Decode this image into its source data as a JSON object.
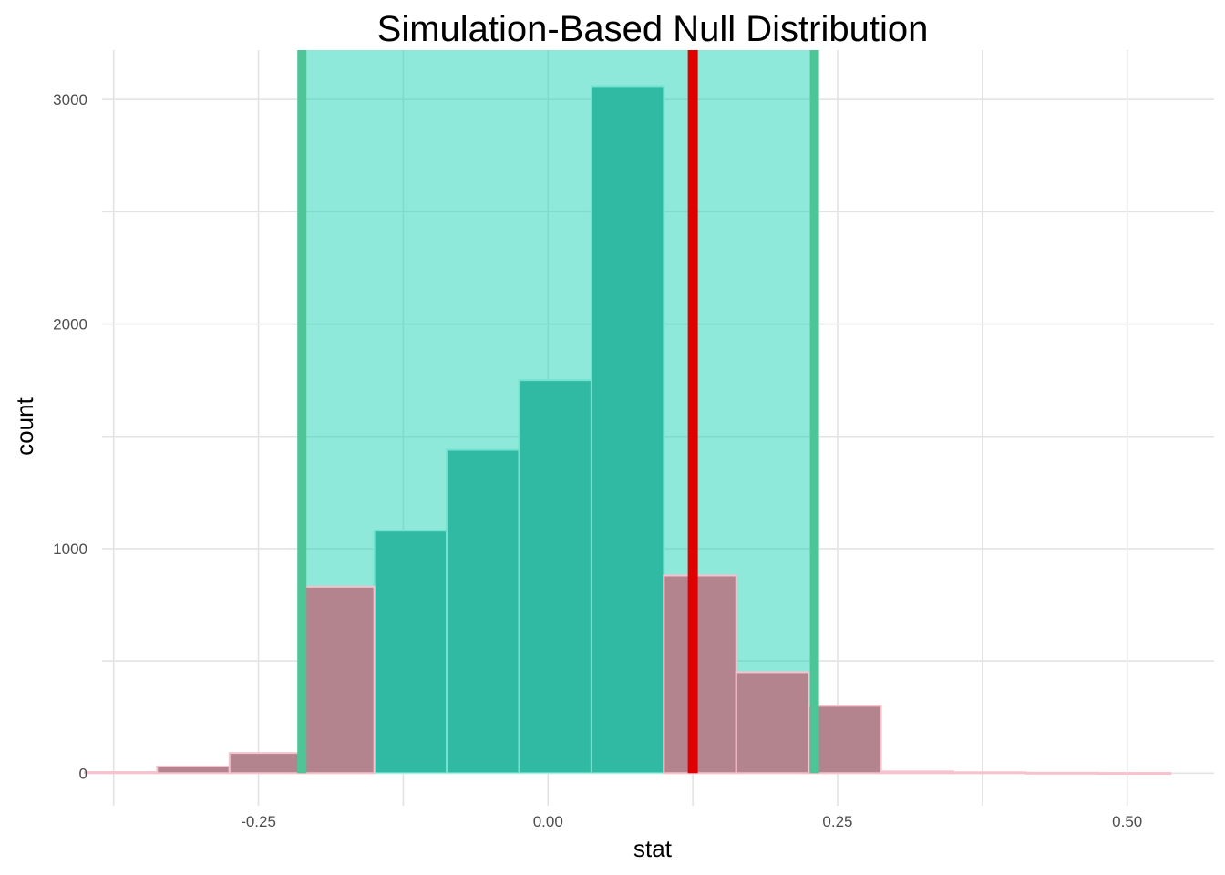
{
  "chart_data": {
    "type": "bar",
    "title": "Simulation-Based Null Distribution",
    "xlabel": "stat",
    "ylabel": "count",
    "xlim": [
      -0.385,
      0.575
    ],
    "ylim": [
      -145,
      3220
    ],
    "x_ticks": [
      -0.25,
      0.0,
      0.25,
      0.5
    ],
    "x_tick_labels": [
      "-0.25",
      "0.00",
      "0.25",
      "0.50"
    ],
    "y_ticks": [
      0,
      1000,
      2000,
      3000
    ],
    "y_tick_labels": [
      "0",
      "1000",
      "2000",
      "3000"
    ],
    "x_minor_grid": [
      -0.375,
      -0.125,
      0.125,
      0.375
    ],
    "y_minor_grid": [
      500,
      1500,
      2500
    ],
    "grid": true,
    "null_distribution": {
      "color": "#40a090",
      "bins": [
        {
          "x0": -0.2125,
          "x1": -0.15,
          "count": 830
        },
        {
          "x0": -0.15,
          "x1": -0.0875,
          "count": 1080
        },
        {
          "x0": -0.0875,
          "x1": -0.025,
          "count": 1440
        },
        {
          "x0": -0.025,
          "x1": 0.0375,
          "count": 1750
        },
        {
          "x0": 0.0375,
          "x1": 0.1,
          "count": 3060
        },
        {
          "x0": 0.1,
          "x1": 0.1625,
          "count": 880
        }
      ]
    },
    "comparison_distribution": {
      "color": "#b4848e",
      "bins": [
        {
          "x0": -0.4,
          "x1": -0.3375,
          "count": 5
        },
        {
          "x0": -0.3375,
          "x1": -0.275,
          "count": 30
        },
        {
          "x0": -0.275,
          "x1": -0.2125,
          "count": 90
        },
        {
          "x0": -0.2125,
          "x1": -0.15,
          "count": 830
        },
        {
          "x0": 0.1,
          "x1": 0.1625,
          "count": 880
        },
        {
          "x0": 0.1625,
          "x1": 0.225,
          "count": 450
        },
        {
          "x0": 0.225,
          "x1": 0.2875,
          "count": 300
        },
        {
          "x0": 0.2875,
          "x1": 0.35,
          "count": 8
        },
        {
          "x0": 0.35,
          "x1": 0.4125,
          "count": 4
        },
        {
          "x0": 0.4125,
          "x1": 0.475,
          "count": 2
        },
        {
          "x0": 0.475,
          "x1": 0.5375,
          "count": 1
        }
      ]
    },
    "confidence_interval": {
      "lower": -0.2125,
      "upper": 0.23,
      "fill": "#1fd3b5",
      "edge": "#4ec597"
    },
    "observed_stat": {
      "value": 0.125,
      "color": "#e00000"
    }
  }
}
